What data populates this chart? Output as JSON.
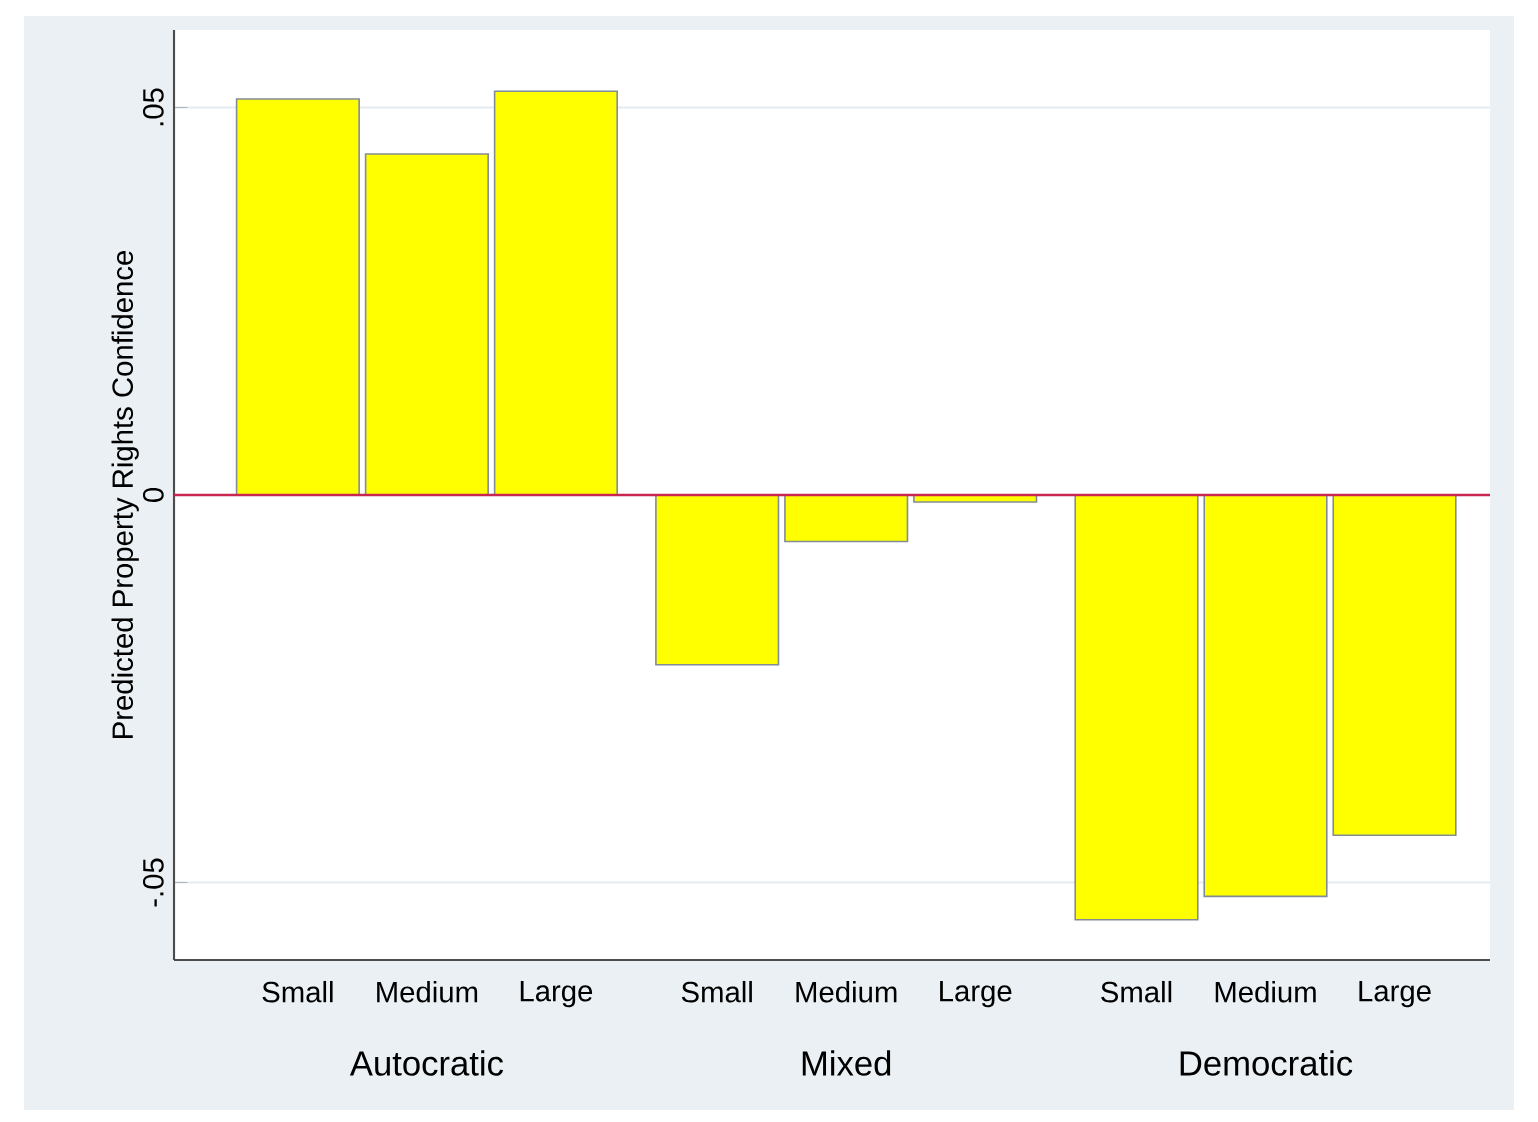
{
  "chart_data": {
    "type": "bar",
    "ylabel": "Predicted Property Rights Confidence",
    "categories": [
      "Small",
      "Medium",
      "Large",
      "Small",
      "Medium",
      "Large",
      "Small",
      "Medium",
      "Large"
    ],
    "values": [
      0.0511,
      0.044,
      0.0521,
      -0.0219,
      -0.006,
      -0.0009,
      -0.0548,
      -0.0518,
      -0.0439
    ],
    "color": "#ffff00",
    "ylim": [
      -0.06,
      0.06
    ],
    "yticks": [
      {
        "value": -0.05,
        "label": "-.05"
      },
      0,
      {
        "value": 0.05,
        "label": ".05"
      }
    ],
    "grid": "y",
    "ref_lines": [
      {
        "axis": "y",
        "value": 0,
        "color": "#c8284f"
      }
    ],
    "annotations": [
      "Autocratic",
      "Mixed",
      "Democratic"
    ]
  }
}
